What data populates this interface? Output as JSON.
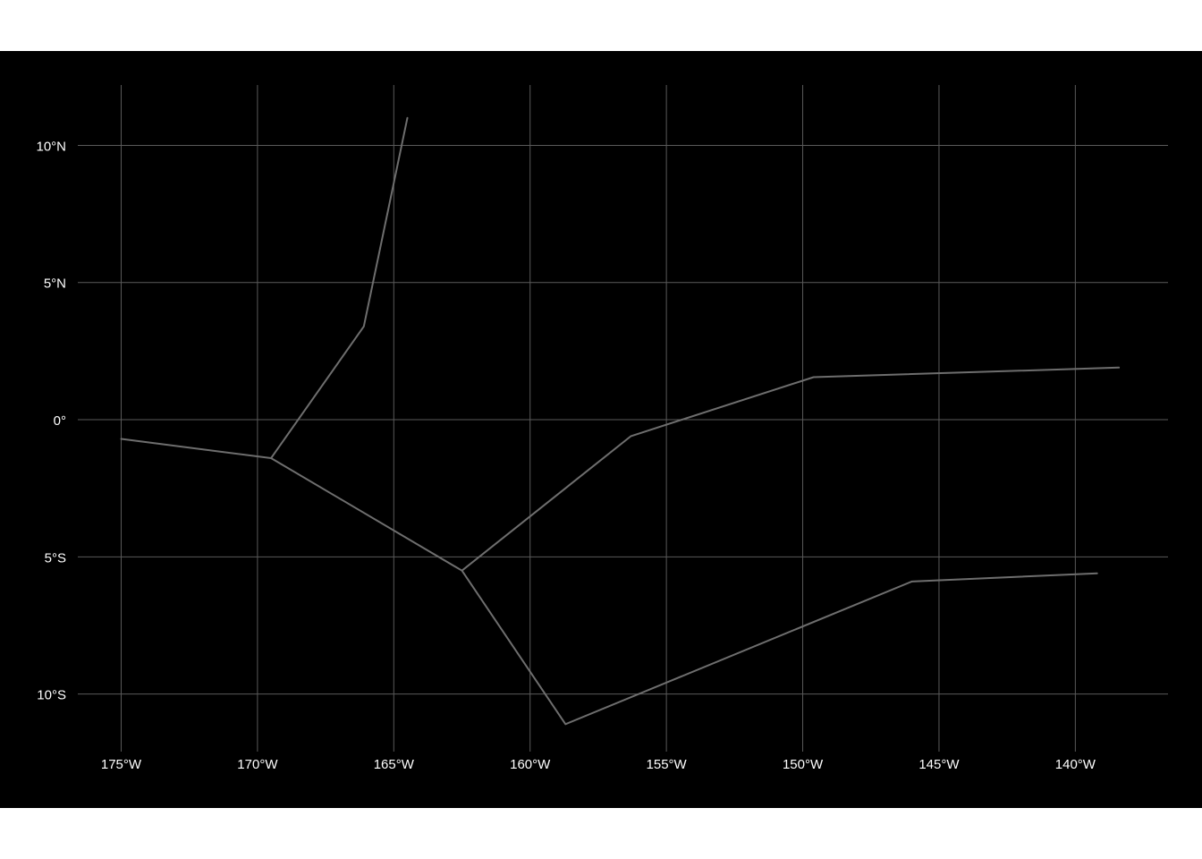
{
  "map": {
    "type": "line",
    "background_color": "#000000",
    "grid_color": "#5a5a5a",
    "line_color": "#6e6e6e",
    "x_ticks": [
      {
        "value": -175,
        "label": "175°W"
      },
      {
        "value": -170,
        "label": "170°W"
      },
      {
        "value": -165,
        "label": "165°W"
      },
      {
        "value": -160,
        "label": "160°W"
      },
      {
        "value": -155,
        "label": "155°W"
      },
      {
        "value": -150,
        "label": "150°W"
      },
      {
        "value": -145,
        "label": "145°W"
      },
      {
        "value": -140,
        "label": "140°W"
      }
    ],
    "y_ticks": [
      {
        "value": 10,
        "label": "10°N"
      },
      {
        "value": 5,
        "label": "5°N"
      },
      {
        "value": 0,
        "label": "0°"
      },
      {
        "value": -5,
        "label": "5°S"
      },
      {
        "value": -10,
        "label": "10°S"
      }
    ],
    "xlim": [
      -176.0,
      -136.6
    ],
    "ylim": [
      -12.1,
      12.2
    ],
    "grid": true,
    "lines": [
      [
        [
          -175.0,
          -0.7
        ],
        [
          -169.5,
          -1.4
        ],
        [
          -162.5,
          -5.5
        ],
        [
          -158.7,
          -11.1
        ],
        [
          -146.0,
          -5.9
        ],
        [
          -139.2,
          -5.6
        ]
      ],
      [
        [
          -169.5,
          -1.4
        ],
        [
          -166.1,
          3.4
        ],
        [
          -164.5,
          11.0
        ]
      ],
      [
        [
          -162.5,
          -5.5
        ],
        [
          -156.3,
          -0.6
        ],
        [
          -149.6,
          1.55
        ],
        [
          -138.4,
          1.9
        ]
      ]
    ]
  }
}
